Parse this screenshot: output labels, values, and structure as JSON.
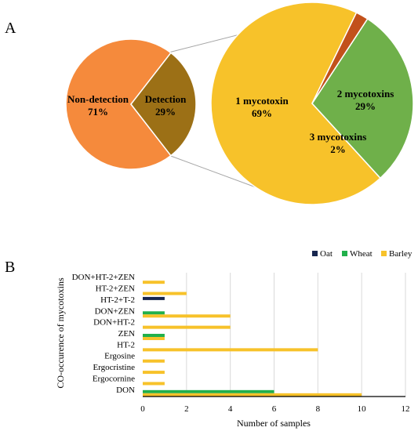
{
  "panels": {
    "a": "A",
    "b": "B"
  },
  "chart_data": [
    {
      "type": "pie",
      "panel": "A",
      "slices": [
        {
          "label": "Non-detection",
          "percent_label": "71%",
          "value": 71,
          "color": "#f58a3c"
        },
        {
          "label": "Detection",
          "percent_label": "29%",
          "value": 29,
          "color": "#9c7016"
        }
      ]
    },
    {
      "type": "pie",
      "panel": "A",
      "slices": [
        {
          "label": "1 mycotoxin",
          "percent_label": "69%",
          "value": 69,
          "color": "#f7c22a"
        },
        {
          "label": "2 mycotoxins",
          "percent_label": "29%",
          "value": 29,
          "color": "#6fb04a"
        },
        {
          "label": "3 mycotoxins",
          "percent_label": "2%",
          "value": 2,
          "color": "#c2511b"
        }
      ]
    },
    {
      "type": "bar",
      "orientation": "horizontal",
      "panel": "B",
      "categories": [
        "DON+HT-2+ZEN",
        "HT-2+ZEN",
        "HT-2+T-2",
        "DON+ZEN",
        "DON+HT-2",
        "ZEN",
        "HT-2",
        "Ergosine",
        "Ergocristine",
        "Ergocornine",
        "DON"
      ],
      "series": [
        {
          "name": "Oat",
          "color": "#17264f",
          "values": [
            0,
            0,
            1,
            0,
            0,
            0,
            0,
            0,
            0,
            0,
            0
          ]
        },
        {
          "name": "Wheat",
          "color": "#21b04b",
          "values": [
            0,
            0,
            0,
            1,
            0,
            1,
            0,
            0,
            0,
            0,
            6
          ]
        },
        {
          "name": "Barley",
          "color": "#f7c22a",
          "values": [
            1,
            2,
            0,
            4,
            4,
            1,
            8,
            1,
            1,
            1,
            10
          ]
        }
      ],
      "xlabel": "Number of samples",
      "ylabel": "CO-occurence of mycotoxins",
      "xlim": [
        0,
        12
      ],
      "xticks": [
        0,
        2,
        4,
        6,
        8,
        10,
        12
      ],
      "grid": true,
      "legend": "top-right"
    }
  ]
}
